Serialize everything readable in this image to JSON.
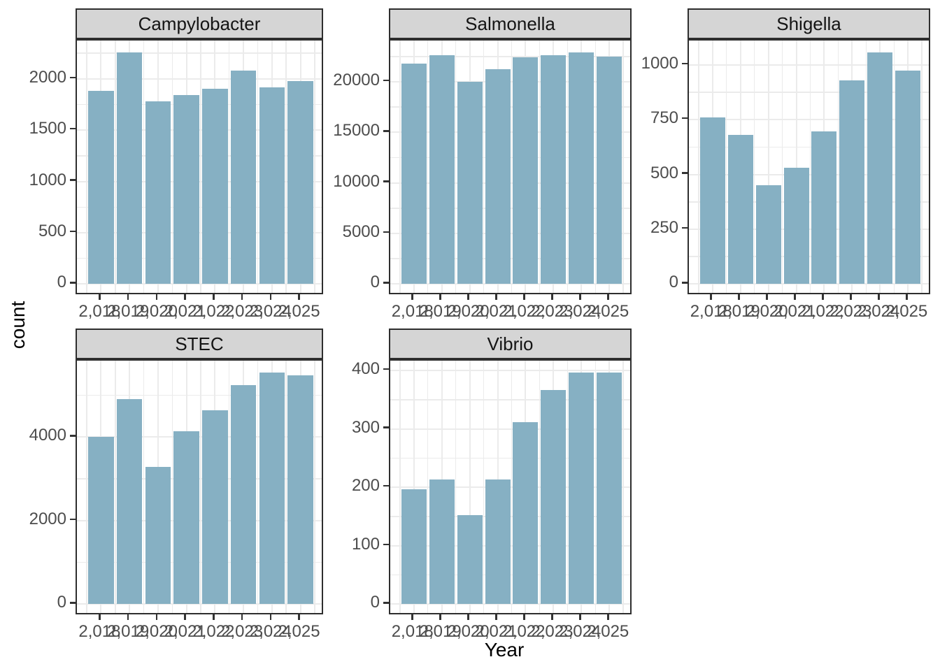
{
  "figure": {
    "background": "#ffffff",
    "bar_color": "#86B0C3",
    "grid_color": "#EBEBEB",
    "strip_fill": "#D5D5D5",
    "strip_text_color": "#141414",
    "panel_border_color": "#2e2e2e",
    "tick_mark_color": "#333333",
    "tick_label_color": "#4d4d4d"
  },
  "chart_data": {
    "type": "bar",
    "title": "",
    "xlabel": "Year",
    "ylabel": "count",
    "legend": "none",
    "grid": "major and minor, light gray on white panels",
    "facet_layout": "2 rows x 3 columns, 5 facets with independent (free) y scales",
    "x": [
      2018,
      2019,
      2020,
      2021,
      2022,
      2023,
      2024,
      2025
    ],
    "x_tick_labels": [
      "2,018",
      "2,019",
      "2,020",
      "2,021",
      "2,022",
      "2,023",
      "2,024",
      "2,025"
    ],
    "x_expand_mult": 0.05,
    "y_expand_mult": 0.05,
    "bar_rel_width": 0.9,
    "facets": [
      {
        "label": "Campylobacter",
        "values": [
          1880,
          2260,
          1780,
          1840,
          1900,
          2080,
          1920,
          1975
        ],
        "y_ticks": [
          0,
          500,
          1000,
          1500,
          2000
        ],
        "ylim": [
          0,
          2373
        ]
      },
      {
        "label": "Salmonella",
        "values": [
          21800,
          22650,
          19970,
          21250,
          22400,
          22650,
          22930,
          22470
        ],
        "y_ticks": [
          0,
          5000,
          10000,
          15000,
          20000
        ],
        "ylim": [
          0,
          24077
        ]
      },
      {
        "label": "Shigella",
        "values": [
          760,
          680,
          452,
          530,
          697,
          930,
          1058,
          973
        ],
        "y_ticks": [
          0,
          250,
          500,
          750,
          1000
        ],
        "ylim": [
          0,
          1111
        ]
      },
      {
        "label": "STEC",
        "values": [
          4000,
          4910,
          3280,
          4140,
          4640,
          5250,
          5550,
          5480
        ],
        "y_ticks": [
          0,
          2000,
          4000
        ],
        "ylim": [
          0,
          5828
        ]
      },
      {
        "label": "Vibrio",
        "values": [
          197,
          213,
          153,
          213,
          311,
          367,
          397,
          397
        ],
        "y_ticks": [
          0,
          100,
          200,
          300,
          400
        ],
        "ylim": [
          0,
          417
        ]
      }
    ]
  }
}
